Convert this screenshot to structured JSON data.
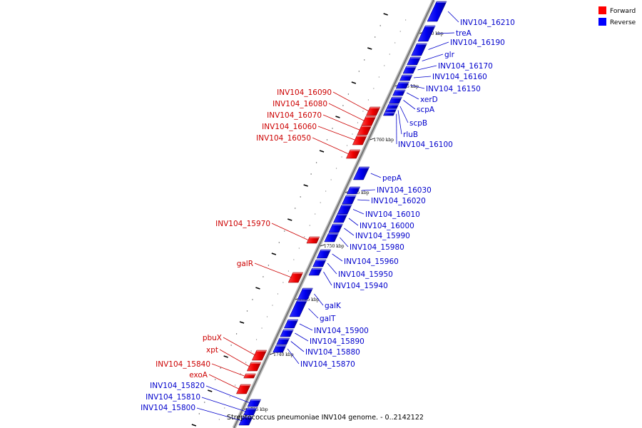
{
  "caption": "Streptococcus pneumoniae INV104 genome. - 0..2142122",
  "legend": [
    {
      "label": "Forward",
      "color": "#ff0000"
    },
    {
      "label": "Reverse",
      "color": "#0000ff"
    }
  ],
  "colors": {
    "forward": "#ff0000",
    "reverse": "#0000ff",
    "backbone": "#888888"
  },
  "scale_labels": [
    "1770 kbp",
    "1765 kbp",
    "1760 kbp",
    "1755 kbp",
    "1750 kbp",
    "1745 kbp",
    "1740 kbp",
    "1735 kbp"
  ],
  "forward_genes": [
    "INV104_16090",
    "INV104_16080",
    "INV104_16070",
    "INV104_16060",
    "INV104_16050",
    "INV104_15970",
    "galR",
    "pbuX",
    "xpt",
    "INV104_15840",
    "exoA"
  ],
  "reverse_genes_bottom_left": [
    "INV104_15820",
    "INV104_15810",
    "INV104_15800"
  ],
  "reverse_genes": [
    "INV104_16210",
    "treA",
    "INV104_16190",
    "glr",
    "INV104_16170",
    "INV104_16160",
    "INV104_16150",
    "xerD",
    "scpA",
    "scpB",
    "rluB",
    "INV104_16100",
    "pepA",
    "INV104_16030",
    "INV104_16020",
    "INV104_16010",
    "INV104_16000",
    "INV104_15990",
    "INV104_15980",
    "INV104_15960",
    "INV104_15950",
    "INV104_15940",
    "galK",
    "galT",
    "INV104_15900",
    "INV104_15890",
    "INV104_15880",
    "INV104_15870"
  ]
}
